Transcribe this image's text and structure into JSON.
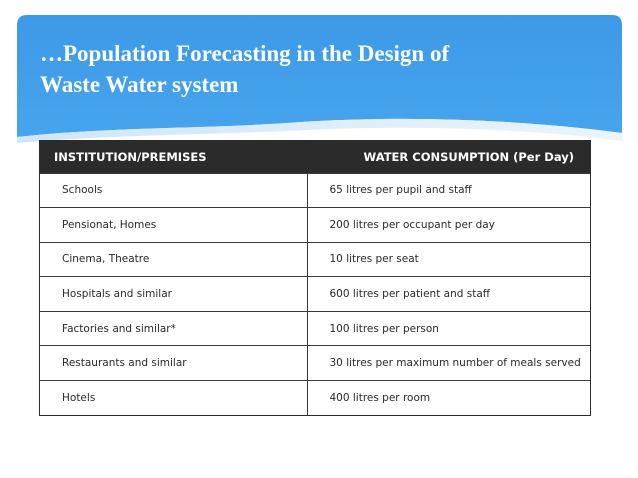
{
  "slide": {
    "title": "…Population Forecasting in the Design of\nWaste Water system"
  },
  "table": {
    "headers": [
      "INSTITUTION/PREMISES",
      "WATER CONSUMPTION (Per Day)"
    ],
    "rows": [
      [
        "Schools",
        "65 litres per pupil and staff"
      ],
      [
        "Pensionat, Homes",
        "200 litres per occupant per day"
      ],
      [
        "Cinema, Theatre",
        "10 litres per seat"
      ],
      [
        "Hospitals and similar",
        "600 litres per patient and staff"
      ],
      [
        "Factories and similar*",
        "100 litres per person"
      ],
      [
        "Restaurants and similar",
        "30 litres per maximum number of meals served"
      ],
      [
        "Hotels",
        "400 litres per room"
      ]
    ]
  },
  "colors": {
    "header_blue": "#3f9be6",
    "header_dark": "#2b2b2b"
  }
}
